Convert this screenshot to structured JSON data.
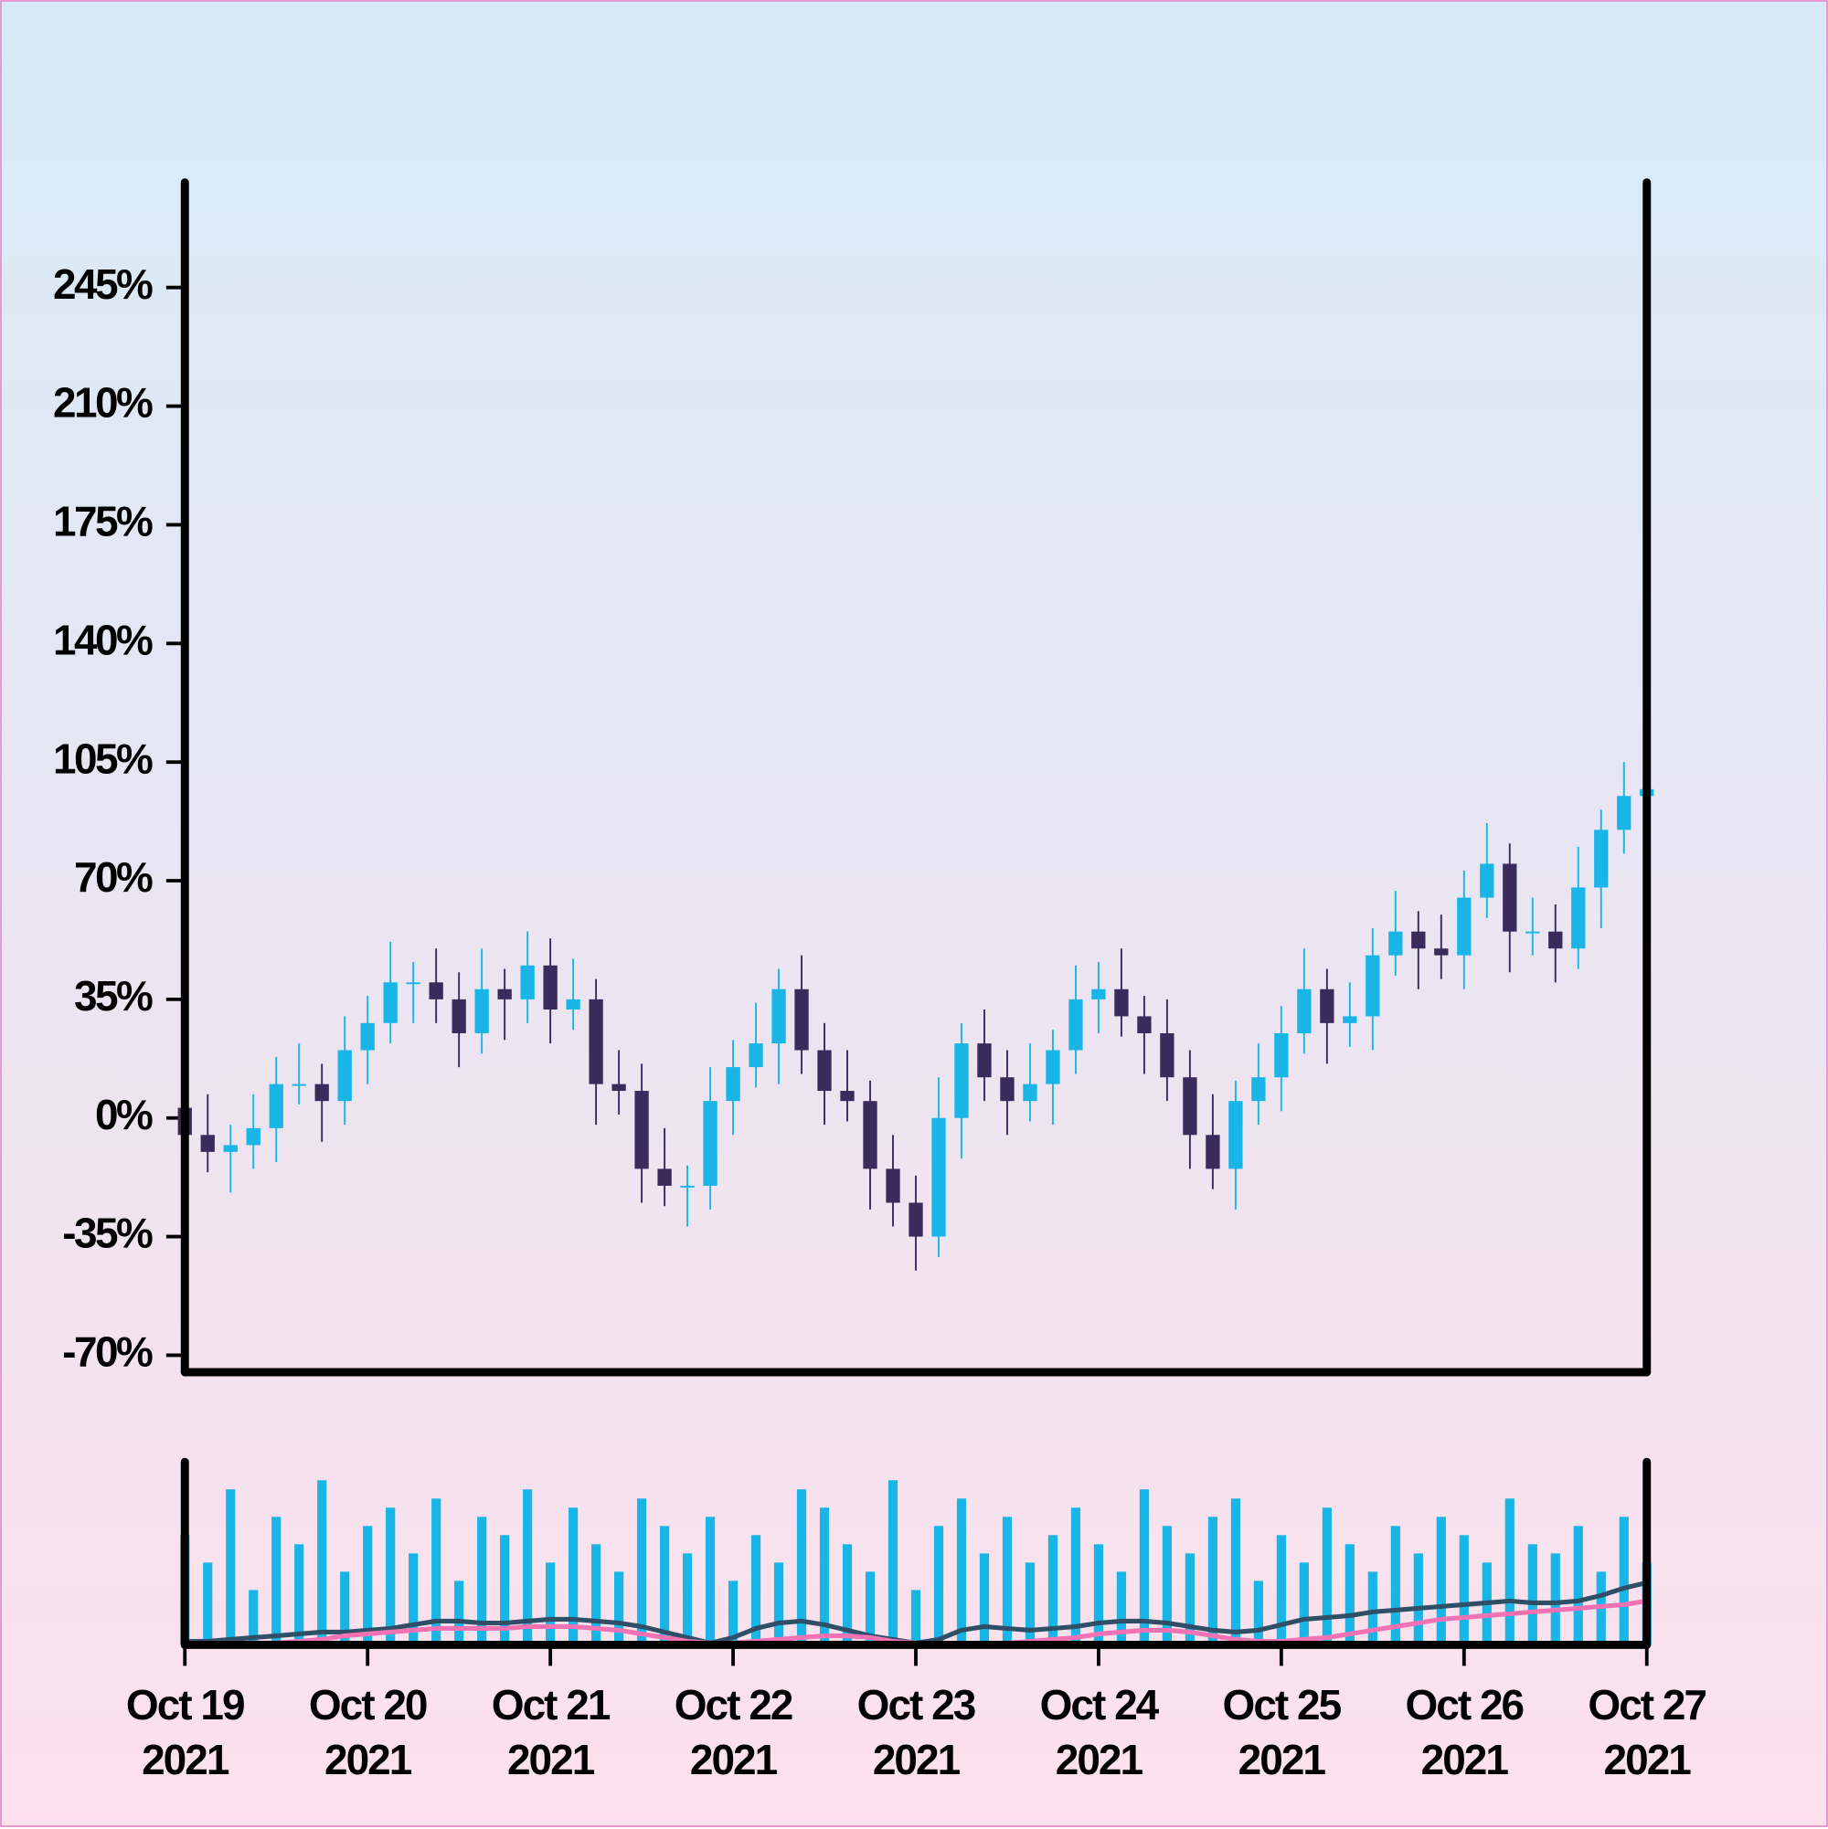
{
  "chart_data": [
    {
      "type": "candlestick",
      "x": [
        "2021-10-19T00:00",
        "2021-10-19T03:00",
        "2021-10-19T06:00",
        "2021-10-19T09:00",
        "2021-10-19T12:00",
        "2021-10-19T15:00",
        "2021-10-19T18:00",
        "2021-10-19T21:00",
        "2021-10-20T00:00",
        "2021-10-20T03:00",
        "2021-10-20T06:00",
        "2021-10-20T09:00",
        "2021-10-20T12:00",
        "2021-10-20T15:00",
        "2021-10-20T18:00",
        "2021-10-20T21:00",
        "2021-10-21T00:00",
        "2021-10-21T03:00",
        "2021-10-21T06:00",
        "2021-10-21T09:00",
        "2021-10-21T12:00",
        "2021-10-21T15:00",
        "2021-10-21T18:00",
        "2021-10-21T21:00",
        "2021-10-22T00:00",
        "2021-10-22T03:00",
        "2021-10-22T06:00",
        "2021-10-22T09:00",
        "2021-10-22T12:00",
        "2021-10-22T15:00",
        "2021-10-22T18:00",
        "2021-10-22T21:00",
        "2021-10-23T00:00",
        "2021-10-23T03:00",
        "2021-10-23T06:00",
        "2021-10-23T09:00",
        "2021-10-23T12:00",
        "2021-10-23T15:00",
        "2021-10-23T18:00",
        "2021-10-23T21:00",
        "2021-10-24T00:00",
        "2021-10-24T03:00",
        "2021-10-24T06:00",
        "2021-10-24T09:00",
        "2021-10-24T12:00",
        "2021-10-24T15:00",
        "2021-10-24T18:00",
        "2021-10-24T21:00",
        "2021-10-25T00:00",
        "2021-10-25T03:00",
        "2021-10-25T06:00",
        "2021-10-25T09:00",
        "2021-10-25T12:00",
        "2021-10-25T15:00",
        "2021-10-25T18:00",
        "2021-10-25T21:00",
        "2021-10-26T00:00",
        "2021-10-26T03:00",
        "2021-10-26T06:00",
        "2021-10-26T09:00",
        "2021-10-26T12:00",
        "2021-10-26T15:00",
        "2021-10-26T18:00",
        "2021-10-26T21:00",
        "2021-10-27T00:00"
      ],
      "open": [
        3,
        -5,
        -10,
        -8,
        -3,
        10,
        10,
        5,
        20,
        28,
        40,
        40,
        35,
        25,
        38,
        35,
        45,
        32,
        35,
        10,
        8,
        -15,
        -20,
        -20,
        5,
        15,
        22,
        38,
        20,
        8,
        5,
        -15,
        -25,
        -35,
        0,
        22,
        12,
        5,
        10,
        20,
        35,
        38,
        30,
        25,
        12,
        -5,
        -15,
        5,
        12,
        25,
        38,
        28,
        30,
        48,
        55,
        50,
        48,
        65,
        75,
        55,
        55,
        50,
        68,
        85,
        95
      ],
      "high": [
        11,
        7,
        -2,
        7,
        18,
        22,
        16,
        30,
        36,
        52,
        46,
        50,
        43,
        50,
        44,
        55,
        53,
        47,
        41,
        20,
        16,
        -3,
        -14,
        15,
        23,
        34,
        44,
        48,
        28,
        20,
        11,
        -5,
        -17,
        12,
        28,
        32,
        20,
        22,
        26,
        45,
        46,
        50,
        36,
        35,
        20,
        7,
        11,
        22,
        33,
        50,
        44,
        40,
        56,
        67,
        61,
        60,
        73,
        87,
        81,
        65,
        63,
        80,
        91,
        105,
        105
      ],
      "low": [
        -15,
        -16,
        -22,
        -15,
        -13,
        4,
        -7,
        -2,
        10,
        22,
        28,
        28,
        15,
        19,
        23,
        28,
        22,
        26,
        -2,
        1,
        -25,
        -26,
        -32,
        -27,
        -5,
        9,
        10,
        13,
        -2,
        -1,
        -27,
        -32,
        -45,
        -41,
        -12,
        5,
        -5,
        -1,
        -2,
        13,
        25,
        24,
        13,
        5,
        -15,
        -21,
        -27,
        -2,
        2,
        19,
        16,
        21,
        20,
        42,
        38,
        41,
        38,
        59,
        43,
        48,
        40,
        44,
        56,
        78,
        85
      ],
      "close": [
        -5,
        -10,
        -8,
        -3,
        10,
        10,
        5,
        20,
        28,
        40,
        40,
        35,
        25,
        38,
        35,
        45,
        32,
        35,
        10,
        8,
        -15,
        -20,
        -20,
        5,
        15,
        22,
        38,
        20,
        8,
        5,
        -15,
        -25,
        -35,
        0,
        22,
        12,
        5,
        10,
        20,
        35,
        38,
        30,
        25,
        12,
        -5,
        -15,
        5,
        12,
        25,
        38,
        28,
        30,
        48,
        55,
        50,
        48,
        65,
        75,
        55,
        55,
        50,
        68,
        85,
        95,
        97
      ],
      "up_color": "#19b5e6",
      "down_color": "#3b2a5c",
      "xlim": [
        "2021-10-19T00:00",
        "2021-10-27T00:00"
      ],
      "ylim": [
        -75,
        276
      ],
      "yticks": [
        {
          "value": -70,
          "label": "-70%"
        },
        {
          "value": -35,
          "label": "-35%"
        },
        {
          "value": 0,
          "label": "0%"
        },
        {
          "value": 35,
          "label": "35%"
        },
        {
          "value": 70,
          "label": "70%"
        },
        {
          "value": 105,
          "label": "105%"
        },
        {
          "value": 140,
          "label": "140%"
        },
        {
          "value": 175,
          "label": "175%"
        },
        {
          "value": 210,
          "label": "210%"
        },
        {
          "value": 245,
          "label": "245%"
        }
      ]
    },
    {
      "type": "bar",
      "values": [
        60,
        45,
        85,
        30,
        70,
        55,
        90,
        40,
        65,
        75,
        50,
        80,
        35,
        70,
        60,
        85,
        45,
        75,
        55,
        40,
        80,
        65,
        50,
        70,
        35,
        60,
        45,
        85,
        75,
        55,
        40,
        90,
        30,
        65,
        80,
        50,
        70,
        45,
        60,
        75,
        55,
        40,
        85,
        65,
        50,
        70,
        80,
        35,
        60,
        45,
        75,
        55,
        40,
        65,
        50,
        70,
        60,
        45,
        80,
        55,
        50,
        65,
        40,
        70,
        45
      ],
      "color": "#19b5e6",
      "ylim": [
        0,
        100
      ],
      "series": [
        {
          "color": "#2f4f66",
          "values": [
            2,
            2,
            3,
            4,
            5,
            6,
            7,
            7,
            8,
            9,
            11,
            13,
            13,
            12,
            12,
            13,
            14,
            14,
            13,
            12,
            10,
            7,
            4,
            1,
            4,
            9,
            12,
            13,
            11,
            8,
            5,
            3,
            1,
            3,
            8,
            10,
            9,
            8,
            9,
            10,
            12,
            13,
            13,
            12,
            10,
            8,
            7,
            8,
            11,
            14,
            15,
            16,
            18,
            19,
            20,
            21,
            22,
            23,
            24,
            23,
            23,
            24,
            27,
            31,
            34
          ]
        },
        {
          "color": "#f272b4",
          "values": [
            1,
            1,
            1,
            1,
            1,
            2,
            3,
            5,
            6,
            7,
            8,
            9,
            9,
            9,
            9,
            10,
            10,
            10,
            9,
            8,
            6,
            4,
            2,
            1,
            1,
            2,
            3,
            4,
            5,
            5,
            4,
            2,
            1,
            0,
            0,
            0,
            1,
            2,
            3,
            4,
            6,
            7,
            8,
            8,
            7,
            5,
            3,
            2,
            2,
            3,
            4,
            6,
            8,
            10,
            12,
            14,
            15,
            16,
            17,
            18,
            19,
            20,
            21,
            22,
            24
          ]
        }
      ],
      "xticks": [
        {
          "value": "2021-10-19",
          "label": "Oct 19\n2021"
        },
        {
          "value": "2021-10-20",
          "label": "Oct 20\n2021"
        },
        {
          "value": "2021-10-21",
          "label": "Oct 21\n2021"
        },
        {
          "value": "2021-10-22",
          "label": "Oct 22\n2021"
        },
        {
          "value": "2021-10-23",
          "label": "Oct 23\n2021"
        },
        {
          "value": "2021-10-24",
          "label": "Oct 24\n2021"
        },
        {
          "value": "2021-10-25",
          "label": "Oct 25\n2021"
        },
        {
          "value": "2021-10-26",
          "label": "Oct 26\n2021"
        },
        {
          "value": "2021-10-27",
          "label": "Oct 27\n2021"
        }
      ]
    }
  ]
}
